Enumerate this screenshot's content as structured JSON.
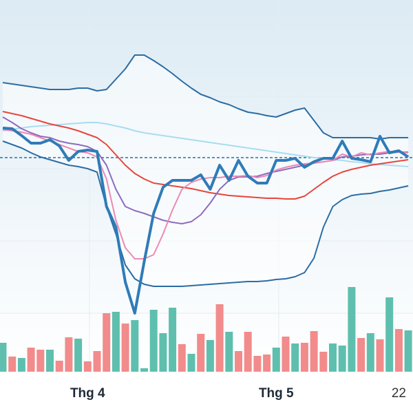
{
  "chart_data": {
    "type": "line",
    "categories": [
      null,
      null,
      null,
      null,
      null,
      null,
      null,
      null,
      null,
      "Thg 4",
      null,
      null,
      null,
      null,
      null,
      null,
      null,
      null,
      null,
      null,
      null,
      null,
      null,
      null,
      null,
      null,
      null,
      null,
      null,
      "Thg 5",
      null,
      null,
      null,
      null,
      null,
      null,
      null,
      null,
      null,
      null,
      null,
      null,
      "22",
      null
    ],
    "ylim": [
      0,
      600
    ],
    "y2lim": [
      0,
      540
    ],
    "reference_value": 371,
    "series": [
      {
        "color": "#2b6ca3",
        "width": 2,
        "values": [
          480,
          478,
          476,
          474,
          472,
          470,
          470,
          470,
          472,
          472,
          468,
          470,
          485,
          500,
          520,
          520,
          512,
          503,
          493,
          482,
          472,
          463,
          458,
          452,
          448,
          442,
          437,
          435,
          432,
          430,
          435,
          440,
          443,
          425,
          407,
          400,
          400,
          400,
          400,
          400,
          398,
          400,
          400,
          400
        ]
      },
      {
        "color": "#2b6ca3",
        "width": 2,
        "values": [
          395,
          390,
          385,
          378,
          372,
          368,
          364,
          360,
          358,
          355,
          350,
          300,
          260,
          215,
          195,
          187,
          184,
          184,
          184,
          184,
          185,
          186,
          187,
          188,
          189,
          190,
          191,
          191,
          192,
          194,
          195,
          198,
          204,
          225,
          270,
          300,
          310,
          316,
          318,
          319,
          322,
          324,
          327,
          330
        ]
      },
      {
        "color": "#a8dcf0",
        "width": 2,
        "values": [
          410,
          412,
          414,
          416,
          417,
          418,
          419,
          420,
          421,
          422,
          422,
          420,
          417,
          414,
          410,
          407,
          405,
          403,
          401,
          399,
          397,
          395,
          393,
          391,
          389,
          387,
          385,
          383,
          381,
          379,
          377,
          375,
          373,
          371,
          370,
          368,
          367,
          365,
          364,
          362,
          361,
          360,
          359,
          358
        ]
      },
      {
        "color": "#e8453c",
        "width": 2,
        "values": [
          438,
          435,
          432,
          428,
          424,
          420,
          417,
          414,
          410,
          405,
          400,
          390,
          375,
          360,
          348,
          340,
          334,
          332,
          330,
          328,
          326,
          323,
          320,
          318,
          316,
          315,
          314,
          313,
          312,
          312,
          311,
          311,
          315,
          325,
          335,
          344,
          350,
          354,
          357,
          360,
          362,
          364,
          366,
          368
        ]
      },
      {
        "color": "#8e6bbf",
        "width": 2,
        "values": [
          430,
          422,
          413,
          407,
          402,
          400,
          395,
          392,
          390,
          387,
          380,
          360,
          325,
          300,
          294,
          290,
          285,
          280,
          277,
          275,
          278,
          288,
          305,
          325,
          338,
          343,
          343,
          344,
          348,
          351,
          354,
          357,
          360,
          363,
          365,
          367,
          372,
          373,
          375,
          376,
          376,
          378,
          379,
          379
        ]
      },
      {
        "color": "#ee88b4",
        "width": 2,
        "values": [
          412,
          410,
          408,
          405,
          400,
          395,
          390,
          385,
          380,
          378,
          372,
          340,
          280,
          240,
          224,
          224,
          230,
          260,
          295,
          325,
          335,
          340,
          342,
          342,
          344,
          344,
          345,
          342,
          345,
          353,
          357,
          360,
          362,
          363,
          365,
          367,
          376,
          372,
          378,
          375,
          378,
          380,
          379,
          378
        ]
      },
      {
        "color": "#2f7bb8",
        "width": 4,
        "values": [
          414,
          413,
          403,
          392,
          392,
          397,
          388,
          367,
          380,
          382,
          380,
          300,
          270,
          190,
          145,
          220,
          290,
          328,
          338,
          338,
          338,
          346,
          325,
          360,
          338,
          367,
          344,
          334,
          334,
          367,
          367,
          370,
          357,
          365,
          370,
          370,
          395,
          370,
          368,
          365,
          402,
          378,
          381,
          372
        ]
      }
    ],
    "volume": [
      42,
      22,
      20,
      35,
      32,
      32,
      16,
      50,
      48,
      15,
      30,
      85,
      87,
      70,
      75,
      5,
      90,
      56,
      93,
      40,
      26,
      55,
      46,
      98,
      58,
      30,
      58,
      23,
      25,
      35,
      51,
      41,
      42,
      59,
      29,
      41,
      38,
      123,
      49,
      56,
      47,
      108,
      62,
      60
    ],
    "bar_colors": [
      "#5fbfae",
      "#f28b8b",
      "#5fbfae",
      "#f28b8b",
      "#f28b8b",
      "#5fbfae",
      "#f28b8b",
      "#f28b8b",
      "#5fbfae",
      "#f28b8b",
      "#f28b8b",
      "#f28b8b",
      "#5fbfae",
      "#f28b8b",
      "#5fbfae",
      "#5fbfae",
      "#5fbfae",
      "#5fbfae",
      "#5fbfae",
      "#f28b8b",
      "#5fbfae",
      "#f28b8b",
      "#5fbfae",
      "#f28b8b",
      "#5fbfae",
      "#f28b8b",
      "#f28b8b",
      "#f28b8b",
      "#f28b8b",
      "#5fbfae",
      "#f28b8b",
      "#5fbfae",
      "#f28b8b",
      "#f28b8b",
      "#f28b8b",
      "#5fbfae",
      "#5fbfae",
      "#5fbfae",
      "#f28b8b",
      "#5fbfae",
      "#f28b8b",
      "#5fbfae",
      "#f28b8b",
      "#5fbfae"
    ]
  }
}
